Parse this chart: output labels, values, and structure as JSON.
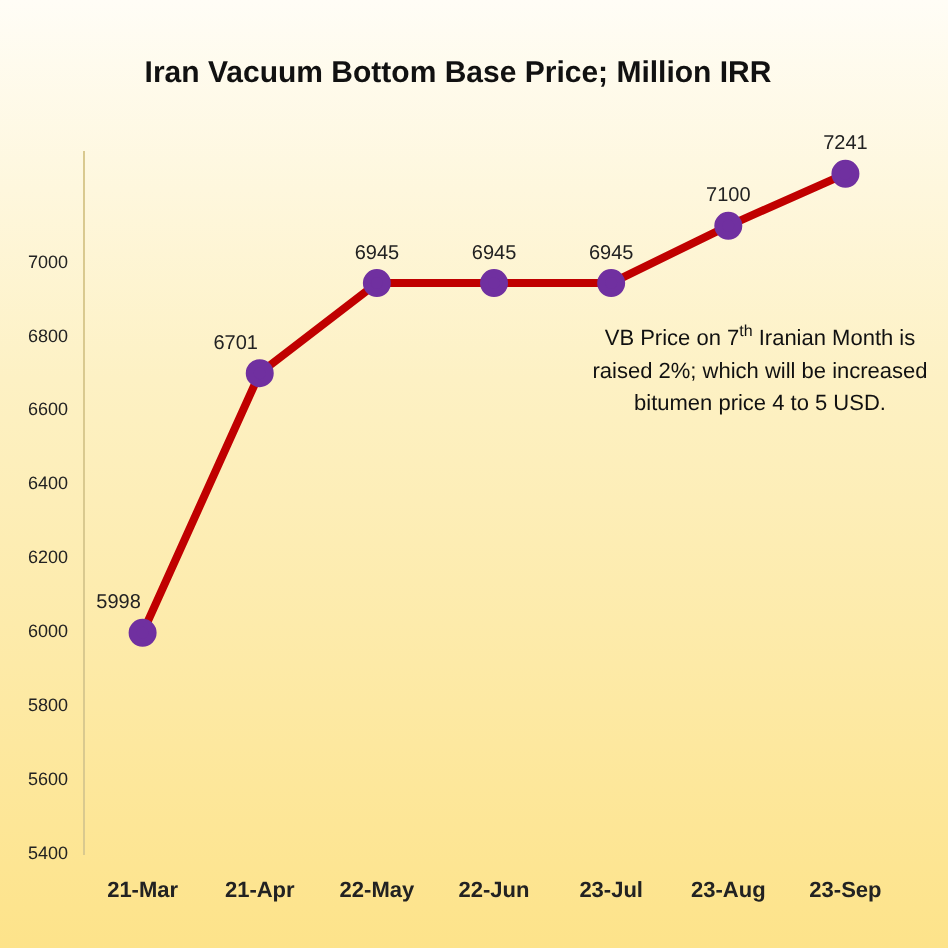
{
  "chart_data": {
    "type": "line",
    "title": "Iran Vacuum Bottom Base Price; Million IRR",
    "categories": [
      "21-Mar",
      "21-Apr",
      "22-May",
      "22-Jun",
      "23-Jul",
      "23-Aug",
      "23-Sep"
    ],
    "series": [
      {
        "color": "#c00000",
        "values": [
          5998,
          6701,
          6945,
          6945,
          6945,
          7100,
          7241
        ]
      }
    ],
    "ylim": [
      5400,
      7300
    ],
    "yticks": [
      5400,
      5600,
      5800,
      6000,
      6200,
      6400,
      6600,
      6800,
      7000
    ],
    "grid": false,
    "legend": false,
    "marker": "circle",
    "line_style": "solid",
    "data_labels": true,
    "annotations": [
      "VB Price on 7$^{th}$ Iranian Month is raised 2%; which will be increased bitumen price 4 to 5 USD."
    ]
  }
}
